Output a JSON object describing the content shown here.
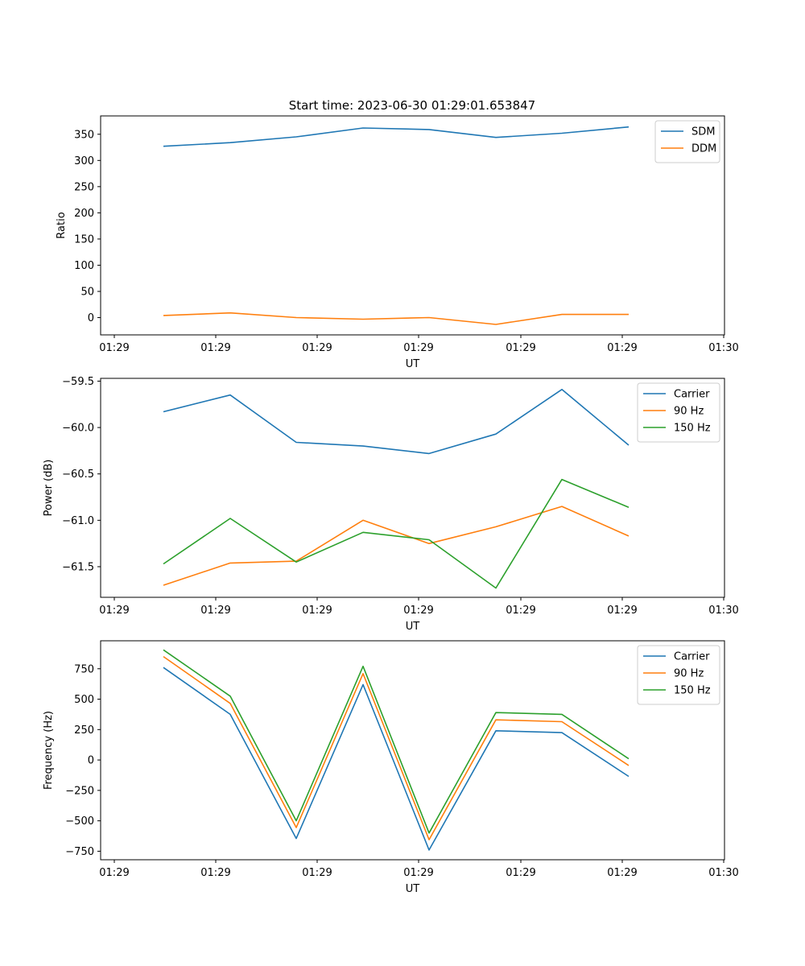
{
  "figure": {
    "title": "Start time: 2023-06-30 01:29:01.653847"
  },
  "chart_data": [
    {
      "type": "line",
      "xlabel": "UT",
      "ylabel": "Ratio",
      "x_tick_labels": [
        "01:29",
        "01:29",
        "01:29",
        "01:29",
        "01:29",
        "01:29",
        "01:30"
      ],
      "ylim": [
        -33,
        385
      ],
      "yticks": [
        0,
        50,
        100,
        150,
        200,
        250,
        300,
        350
      ],
      "ytick_labels": [
        "0",
        "50",
        "100",
        "150",
        "200",
        "250",
        "300",
        "350"
      ],
      "legend_position": "top-right",
      "series": [
        {
          "name": "SDM",
          "color": "#1f77b4",
          "values": [
            327,
            334,
            345,
            362,
            359,
            344,
            352,
            364
          ]
        },
        {
          "name": "DDM",
          "color": "#ff7f0e",
          "values": [
            4,
            9,
            0,
            -3,
            0,
            -13,
            6,
            6
          ]
        }
      ]
    },
    {
      "type": "line",
      "xlabel": "UT",
      "ylabel": "Power (dB)",
      "x_tick_labels": [
        "01:29",
        "01:29",
        "01:29",
        "01:29",
        "01:29",
        "01:29",
        "01:30"
      ],
      "ylim": [
        -61.83,
        -59.47
      ],
      "yticks": [
        -61.5,
        -61.0,
        -60.5,
        -60.0,
        -59.5
      ],
      "ytick_labels": [
        "−61.5",
        "−61.0",
        "−60.5",
        "−60.0",
        "−59.5"
      ],
      "legend_position": "top-right",
      "series": [
        {
          "name": "Carrier",
          "color": "#1f77b4",
          "values": [
            -59.83,
            -59.65,
            -60.16,
            -60.2,
            -60.28,
            -60.07,
            -59.59,
            -60.19
          ]
        },
        {
          "name": "90 Hz",
          "color": "#ff7f0e",
          "values": [
            -61.7,
            -61.46,
            -61.44,
            -61.0,
            -61.25,
            -61.07,
            -60.85,
            -61.17
          ]
        },
        {
          "name": "150 Hz",
          "color": "#2ca02c",
          "values": [
            -61.47,
            -60.98,
            -61.45,
            -61.13,
            -61.21,
            -61.73,
            -60.56,
            -60.86
          ]
        }
      ]
    },
    {
      "type": "line",
      "xlabel": "UT",
      "ylabel": "Frequency (Hz)",
      "x_tick_labels": [
        "01:29",
        "01:29",
        "01:29",
        "01:29",
        "01:29",
        "01:29",
        "01:30"
      ],
      "ylim": [
        -820,
        980
      ],
      "yticks": [
        -750,
        -500,
        -250,
        0,
        250,
        500,
        750
      ],
      "ytick_labels": [
        "−750",
        "−500",
        "−250",
        "0",
        "250",
        "500",
        "750"
      ],
      "legend_position": "top-right",
      "series": [
        {
          "name": "Carrier",
          "color": "#1f77b4",
          "values": [
            760,
            375,
            -645,
            620,
            -740,
            240,
            225,
            -135
          ]
        },
        {
          "name": "90 Hz",
          "color": "#ff7f0e",
          "values": [
            850,
            465,
            -555,
            710,
            -655,
            330,
            315,
            -45
          ]
        },
        {
          "name": "150 Hz",
          "color": "#2ca02c",
          "values": [
            905,
            525,
            -500,
            770,
            -600,
            390,
            375,
            10
          ]
        }
      ]
    }
  ]
}
